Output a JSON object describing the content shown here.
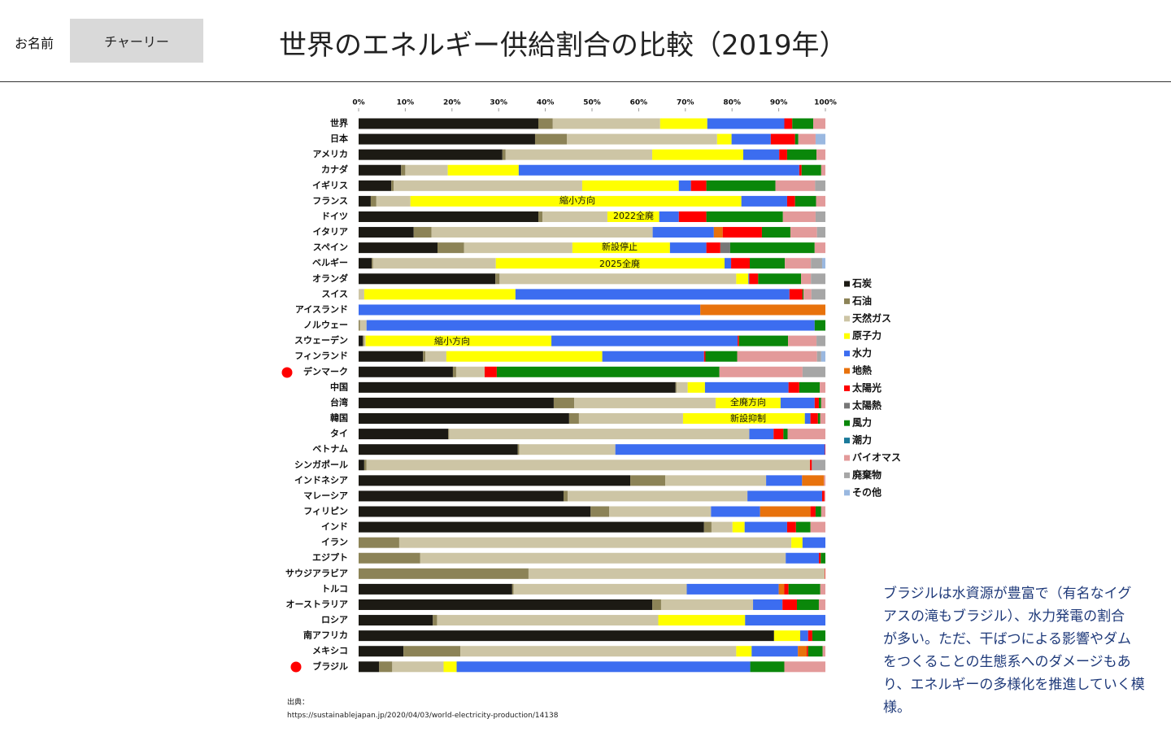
{
  "header": {
    "name_label": "お名前",
    "name": "チャーリー",
    "title": "世界のエネルギー供給割合の比較（2019年）"
  },
  "chart_data": {
    "type": "stacked_bar_horizontal",
    "categories": [
      "世界",
      "日本",
      "アメリカ",
      "カナダ",
      "イギリス",
      "フランス",
      "ドイツ",
      "イタリア",
      "スペイン",
      "ベルギー",
      "オランダ",
      "スイス",
      "アイスランド",
      "ノルウェー",
      "スウェーデン",
      "フィンランド",
      "デンマーク",
      "中国",
      "台湾",
      "韓国",
      "タイ",
      "ベトナム",
      "シンガポール",
      "インドネシア",
      "マレーシア",
      "フィリピン",
      "インド",
      "イラン",
      "エジプト",
      "サウジアラビア",
      "トルコ",
      "オーストラリア",
      "ロシア",
      "南アフリカ",
      "メキシコ",
      "ブラジル"
    ],
    "xlim": [
      0,
      100
    ],
    "xticks": [
      {
        "value": 0,
        "label": "0%"
      },
      {
        "value": 10,
        "label": "10%"
      },
      {
        "value": 20,
        "label": "20%"
      },
      {
        "value": 30,
        "label": "30%"
      },
      {
        "value": 40,
        "label": "40%"
      },
      {
        "value": 50,
        "label": "50%"
      },
      {
        "value": 60,
        "label": "60%"
      },
      {
        "value": 70,
        "label": "70%"
      },
      {
        "value": 80,
        "label": "80%"
      },
      {
        "value": 90,
        "label": "90%"
      },
      {
        "value": 100,
        "label": "100%"
      }
    ],
    "series": [
      {
        "name": "石炭",
        "color": "#1c1a14",
        "values": [
          38.5,
          37.8,
          30.8,
          9.1,
          7,
          2.6,
          38.5,
          11.8,
          16.9,
          2.8,
          29.3,
          0,
          0,
          0,
          0.9,
          13.8,
          20.2,
          67.9,
          41.8,
          45.1,
          19.2,
          34.1,
          1.2,
          58.2,
          43.9,
          49.7,
          74,
          0,
          0,
          0,
          32.9,
          62.9,
          15.9,
          89,
          9.6,
          4.4
        ]
      },
      {
        "name": "石油",
        "color": "#8c8357",
        "values": [
          3.1,
          6.8,
          0.7,
          0.9,
          0.5,
          1.2,
          0.9,
          3.8,
          5.7,
          0.3,
          0.9,
          0,
          0,
          0.3,
          0.3,
          0.5,
          0.7,
          0.2,
          4.4,
          2.1,
          0.2,
          0.3,
          0.5,
          7.5,
          0.9,
          4,
          1.6,
          8.7,
          13.2,
          36.4,
          0.3,
          1.9,
          0.9,
          0,
          12.2,
          2.8
        ]
      },
      {
        "name": "天然ガス",
        "color": "#cdc5a5",
        "values": [
          23,
          32.2,
          31.4,
          9.1,
          40.4,
          7.3,
          13.9,
          47.4,
          23.2,
          26.3,
          50.7,
          1.2,
          0,
          1.4,
          0.3,
          4.5,
          6.1,
          2.4,
          30.3,
          22.3,
          64.3,
          20.6,
          95,
          21.6,
          38.5,
          21.8,
          4.5,
          84,
          78.3,
          63.5,
          37.1,
          19.7,
          47.4,
          0,
          59.1,
          11
        ]
      },
      {
        "name": "原子力",
        "color": "#ffff00",
        "values": [
          10.1,
          3.1,
          19.5,
          15.2,
          20.7,
          70.9,
          11.1,
          0,
          20.9,
          49,
          2.6,
          32.4,
          0,
          0,
          39.8,
          33.4,
          0,
          3.7,
          13.9,
          26.1,
          0,
          0,
          0,
          0,
          0,
          0,
          2.6,
          2.4,
          0,
          0,
          0,
          0,
          18.6,
          5.6,
          3.3,
          2.8
        ]
      },
      {
        "name": "水力",
        "color": "#3c6df0",
        "values": [
          16.5,
          8.4,
          7.7,
          60.1,
          2.6,
          9.8,
          4.2,
          13.1,
          7.8,
          1.4,
          0.2,
          58.7,
          73.2,
          96,
          39.9,
          21.8,
          0,
          17.9,
          7.3,
          1.2,
          5.2,
          44.9,
          0,
          7.7,
          16,
          10.5,
          9.1,
          4.9,
          7.1,
          0,
          19.7,
          6.3,
          17.2,
          1.7,
          9.9,
          62.9
        ]
      },
      {
        "name": "地熱",
        "color": "#e8720c",
        "values": [
          0,
          0,
          0,
          0,
          0,
          0,
          0,
          1.9,
          0,
          0,
          0,
          0,
          26.8,
          0,
          0,
          0,
          0,
          0,
          0,
          0,
          0,
          0,
          0,
          4.7,
          0,
          10.8,
          0,
          0,
          0,
          0,
          1.2,
          0,
          0,
          0,
          1.9,
          0
        ]
      },
      {
        "name": "太陽光",
        "color": "#ff0000",
        "values": [
          1.7,
          5.2,
          1.7,
          0.5,
          3.3,
          1.7,
          5.9,
          8.4,
          3,
          4,
          1.9,
          2.8,
          0,
          0,
          0.3,
          0.3,
          2.6,
          2.3,
          0.9,
          1.6,
          2.1,
          0.1,
          0.4,
          0,
          0.5,
          1.1,
          1.9,
          0,
          0.4,
          0.1,
          0.9,
          3.1,
          0,
          0.9,
          0.3,
          0
        ]
      },
      {
        "name": "太陽熱",
        "color": "#777777",
        "values": [
          0,
          0,
          0,
          0,
          0,
          0,
          0,
          0,
          2.1,
          0,
          0,
          0,
          0,
          0,
          0,
          0,
          0,
          0,
          0,
          0,
          0,
          0,
          0,
          0,
          0,
          0,
          0,
          0,
          0,
          0,
          0,
          0,
          0,
          0,
          0,
          0
        ]
      },
      {
        "name": "風力",
        "color": "#0a870a",
        "values": [
          4.5,
          0.7,
          6.3,
          4.2,
          14.8,
          4.5,
          16.4,
          6.1,
          18.1,
          7.5,
          9.2,
          0.2,
          0,
          2.3,
          10.5,
          6.8,
          47.7,
          4.4,
          0.5,
          0.5,
          0.9,
          0,
          0,
          0,
          0,
          1.2,
          3.1,
          0,
          1,
          0,
          6.8,
          4.7,
          0,
          2.8,
          3.1,
          7.3
        ]
      },
      {
        "name": "潮力",
        "color": "#1a7a9a",
        "values": [
          0,
          0,
          0,
          0,
          0,
          0,
          0,
          0,
          0,
          0,
          0,
          0,
          0,
          0,
          0,
          0,
          0,
          0,
          0,
          0,
          0,
          0,
          0,
          0,
          0,
          0,
          0,
          0,
          0,
          0,
          0,
          0,
          0,
          0,
          0,
          0
        ]
      },
      {
        "name": "バイオマス",
        "color": "#e39a9a",
        "values": [
          2.6,
          3.7,
          1.9,
          0.9,
          8.5,
          2,
          7,
          5.7,
          2.3,
          5.6,
          2.1,
          1.7,
          0,
          0,
          6.1,
          17.1,
          17.8,
          1.2,
          0.9,
          1.1,
          8.1,
          0,
          0,
          0.3,
          0.2,
          0.9,
          3.2,
          0,
          0,
          0,
          1.1,
          1.4,
          0,
          0,
          0.6,
          8.8
        ]
      },
      {
        "name": "廃棄物",
        "color": "#a6a6a6",
        "values": [
          0,
          0,
          0,
          0,
          2.2,
          0,
          2.1,
          1.8,
          0,
          2.4,
          3.1,
          3,
          0,
          0,
          1.9,
          0.9,
          4.9,
          0,
          0,
          0,
          0,
          0,
          2.9,
          0,
          0,
          0,
          0,
          0,
          0,
          0,
          0,
          0,
          0,
          0,
          0,
          0
        ]
      },
      {
        "name": "その他",
        "color": "#9ab8e0",
        "values": [
          0,
          2.1,
          0,
          0,
          0,
          0,
          0,
          0,
          0,
          0.7,
          0,
          0,
          0,
          0,
          0,
          0.9,
          0,
          0,
          0,
          0,
          0,
          0,
          0,
          0,
          0,
          0,
          0,
          0,
          0,
          0,
          0,
          0,
          0,
          0,
          0,
          0
        ]
      }
    ],
    "annotations": [
      "縮小方向",
      "2022全廃",
      "新設停止",
      "2025全廃",
      "縮小方向",
      "全廃方向",
      "新設抑制"
    ]
  },
  "source": {
    "label": "出典：",
    "url": "https://sustainablejapan.jp/2020/04/03/world-electricity-production/14138"
  },
  "note": [
    "ブラジルは水資源が豊富で（有名なイグ",
    "アスの滝もブラジル）、水力発電の割合",
    "が多い。ただ、干ばつによる影響やダム",
    "をつくることの生態系へのダメージもあ",
    "り、エネルギーの多様化を推進していく模",
    "様。"
  ]
}
